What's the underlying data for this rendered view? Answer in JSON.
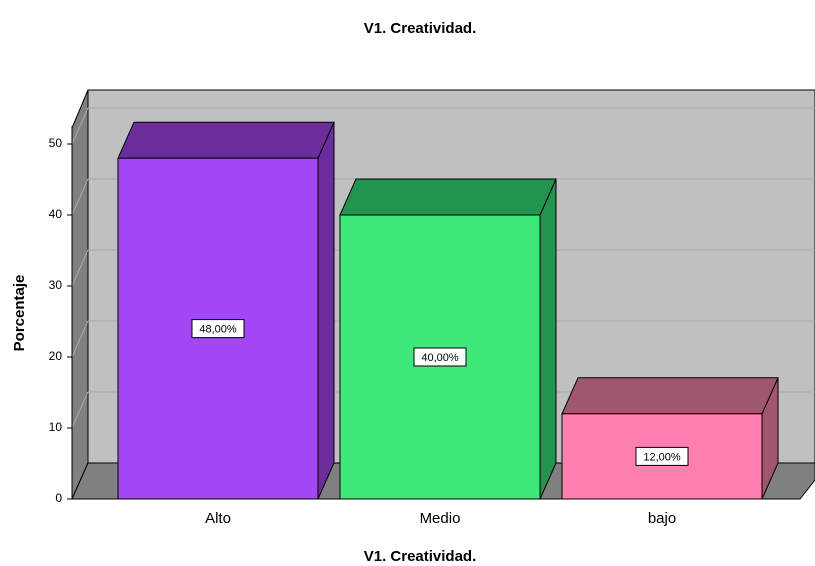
{
  "chart_data": {
    "type": "bar3d",
    "title": "V1. Creatividad.",
    "xlabel": "V1. Creatividad.",
    "ylabel": "Porcentaje",
    "categories": [
      "Alto",
      "Medio",
      "bajo"
    ],
    "values": [
      48,
      40,
      12
    ],
    "value_labels": [
      "48,00%",
      "40,00%",
      "12,00%"
    ],
    "colors": [
      "#a346f5",
      "#40e87c",
      "#ff80b0"
    ],
    "top_colors": [
      "#6c2d9c",
      "#239450",
      "#a0566e"
    ],
    "ylim": [
      0,
      52.5
    ],
    "yticks": [
      0,
      10,
      20,
      30,
      40,
      50
    ],
    "grid": true
  }
}
